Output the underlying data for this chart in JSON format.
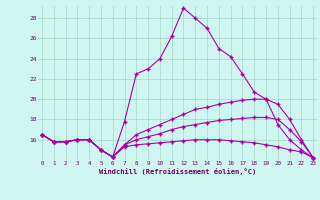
{
  "xlabel": "Windchill (Refroidissement éolien,°C)",
  "bg_color": "#cff5f0",
  "grid_color": "#aaddcc",
  "line_color": "#aa00aa",
  "xmin": 0,
  "xmax": 23,
  "ymin": 14,
  "ymax": 29,
  "yticks": [
    16,
    18,
    20,
    22,
    24,
    26,
    28
  ],
  "xticks": [
    0,
    1,
    2,
    3,
    4,
    5,
    6,
    7,
    8,
    9,
    10,
    11,
    12,
    13,
    14,
    15,
    16,
    17,
    18,
    19,
    20,
    21,
    22,
    23
  ],
  "line1": [
    16.5,
    15.8,
    15.8,
    16.0,
    16.0,
    15.0,
    14.3,
    17.8,
    22.5,
    23.0,
    24.0,
    26.2,
    29.0,
    28.0,
    27.0,
    25.0,
    24.2,
    22.5,
    20.7,
    20.0,
    17.5,
    16.0,
    15.0,
    14.2
  ],
  "line2": [
    16.5,
    15.8,
    15.8,
    16.0,
    16.0,
    15.0,
    14.3,
    15.5,
    16.5,
    17.0,
    17.5,
    18.0,
    18.5,
    19.0,
    19.2,
    19.5,
    19.7,
    19.9,
    20.0,
    20.0,
    19.5,
    18.0,
    16.0,
    14.2
  ],
  "line3": [
    16.5,
    15.8,
    15.8,
    16.0,
    16.0,
    15.0,
    14.3,
    15.5,
    16.0,
    16.3,
    16.6,
    17.0,
    17.3,
    17.5,
    17.7,
    17.9,
    18.0,
    18.1,
    18.2,
    18.2,
    18.0,
    17.0,
    15.8,
    14.2
  ],
  "line4": [
    16.5,
    15.8,
    15.8,
    16.0,
    16.0,
    15.0,
    14.3,
    15.3,
    15.5,
    15.6,
    15.7,
    15.8,
    15.9,
    16.0,
    16.0,
    16.0,
    15.9,
    15.8,
    15.7,
    15.5,
    15.3,
    15.0,
    14.8,
    14.2
  ]
}
